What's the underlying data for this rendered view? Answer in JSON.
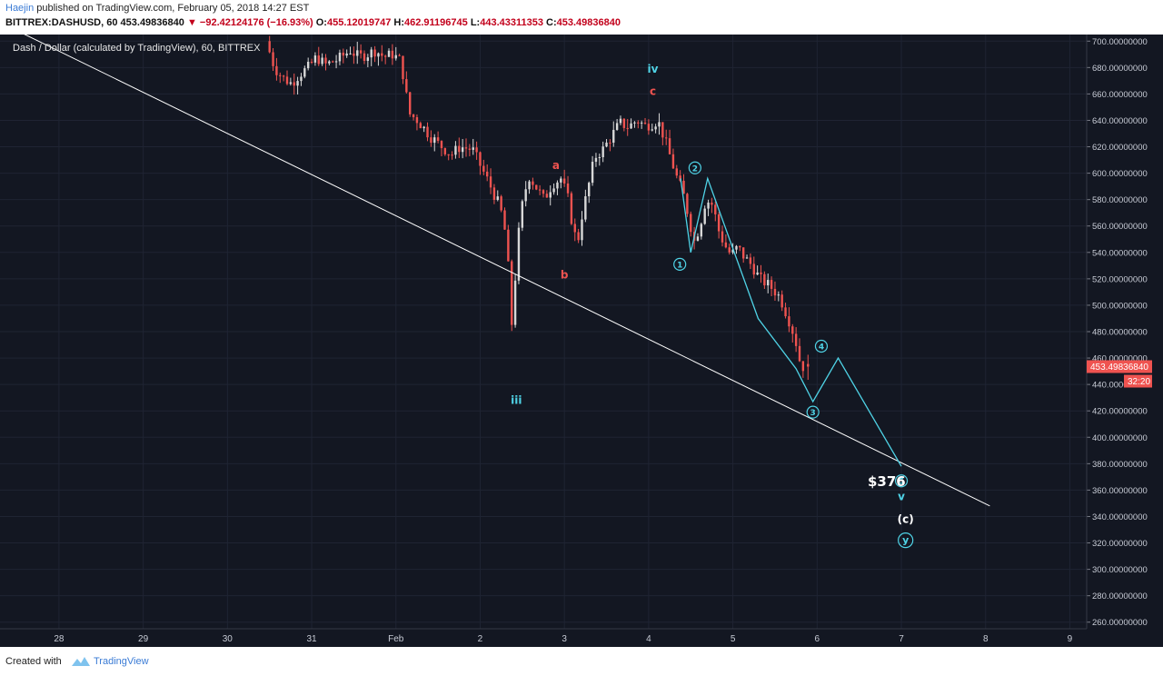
{
  "header": {
    "author": "Haejin",
    "published": "published on TradingView.com, February 05, 2018 14:27 EST",
    "symbol": "BITTREX:DASHUSD, 60",
    "last": "453.49836840",
    "change": "−92.42124176 (−16.93%)",
    "o_label": "O:",
    "o_value": "455.12019747",
    "h_label": "H:",
    "h_value": "462.91196745",
    "l_label": "L:",
    "l_value": "443.43311353",
    "c_label": "C:",
    "c_value": "453.49836840"
  },
  "chart_title": "Dash / Dollar (calculated by TradingView), 60, BITTREX",
  "price_badge": "453.49836840",
  "countdown_badge": "32:20",
  "target_label": "$376",
  "footer": {
    "created_with": "Created with",
    "brand": "TradingView"
  },
  "colors": {
    "background": "#131722",
    "up": "#d8d8d8",
    "down": "#ef5350",
    "wave": "#4fd3e6",
    "trendline": "#ffffff"
  },
  "chart_data": {
    "type": "candlestick",
    "title": "Dash / Dollar (calculated by TradingView), 60, BITTREX",
    "x_ticks": [
      "28",
      "29",
      "30",
      "31",
      "Feb",
      "2",
      "3",
      "4",
      "5",
      "6",
      "7",
      "8",
      "9"
    ],
    "y_ticks": [
      "260.00000000",
      "280.00000000",
      "300.00000000",
      "320.00000000",
      "340.00000000",
      "360.00000000",
      "380.00000000",
      "400.00000000",
      "420.00000000",
      "440.00000000",
      "460.00000000",
      "480.00000000",
      "500.00000000",
      "520.00000000",
      "540.00000000",
      "560.00000000",
      "580.00000000",
      "600.00000000",
      "620.00000000",
      "640.00000000",
      "660.00000000",
      "680.00000000",
      "700.00000000"
    ],
    "ylim": [
      255,
      705
    ],
    "xlim": [
      -0.7,
      12.2
    ],
    "price_path": [
      [
        2.5,
        700
      ],
      [
        2.55,
        690
      ],
      [
        2.6,
        680
      ],
      [
        2.7,
        672
      ],
      [
        2.8,
        668
      ],
      [
        2.9,
        675
      ],
      [
        3.0,
        680
      ],
      [
        3.1,
        688
      ],
      [
        3.2,
        682
      ],
      [
        3.35,
        686
      ],
      [
        3.5,
        693
      ],
      [
        3.6,
        688
      ],
      [
        3.7,
        690
      ],
      [
        3.8,
        693
      ],
      [
        3.9,
        688
      ],
      [
        4.0,
        690
      ],
      [
        4.1,
        685
      ],
      [
        4.2,
        645
      ],
      [
        4.3,
        640
      ],
      [
        4.45,
        628
      ],
      [
        4.55,
        622
      ],
      [
        4.7,
        614
      ],
      [
        4.8,
        620
      ],
      [
        4.95,
        618
      ],
      [
        5.05,
        605
      ],
      [
        5.15,
        592
      ],
      [
        5.25,
        578
      ],
      [
        5.32,
        565
      ],
      [
        5.37,
        535
      ],
      [
        5.4,
        500
      ],
      [
        5.43,
        475
      ],
      [
        5.47,
        540
      ],
      [
        5.55,
        580
      ],
      [
        5.62,
        598
      ],
      [
        5.7,
        590
      ],
      [
        5.8,
        580
      ],
      [
        5.9,
        592
      ],
      [
        6.0,
        596
      ],
      [
        6.08,
        582
      ],
      [
        6.15,
        556
      ],
      [
        6.2,
        548
      ],
      [
        6.25,
        568
      ],
      [
        6.32,
        588
      ],
      [
        6.4,
        612
      ],
      [
        6.5,
        618
      ],
      [
        6.6,
        628
      ],
      [
        6.7,
        638
      ],
      [
        6.8,
        635
      ],
      [
        6.9,
        640
      ],
      [
        7.0,
        636
      ],
      [
        7.1,
        638
      ],
      [
        7.15,
        640
      ],
      [
        7.22,
        628
      ],
      [
        7.3,
        612
      ],
      [
        7.38,
        596
      ],
      [
        7.45,
        585
      ],
      [
        7.52,
        566
      ],
      [
        7.58,
        548
      ],
      [
        7.65,
        560
      ],
      [
        7.72,
        580
      ],
      [
        7.8,
        576
      ],
      [
        7.88,
        555
      ],
      [
        7.95,
        545
      ],
      [
        8.02,
        538
      ],
      [
        8.1,
        544
      ],
      [
        8.18,
        536
      ],
      [
        8.27,
        530
      ],
      [
        8.36,
        520
      ],
      [
        8.45,
        516
      ],
      [
        8.52,
        512
      ],
      [
        8.6,
        506
      ],
      [
        8.7,
        490
      ],
      [
        8.78,
        475
      ],
      [
        8.85,
        453.5
      ]
    ],
    "trendline": [
      [
        -0.5,
        708
      ],
      [
        11.05,
        348
      ]
    ],
    "wave_projection": [
      [
        7.38,
        596
      ],
      [
        7.5,
        540
      ],
      [
        7.7,
        596
      ],
      [
        8.3,
        490
      ],
      [
        8.75,
        452
      ],
      [
        8.95,
        427
      ],
      [
        9.25,
        460
      ],
      [
        10.0,
        378
      ]
    ],
    "wave_labels": [
      {
        "text": "iii",
        "x": 5.43,
        "y": 428,
        "style": "cyan"
      },
      {
        "text": "a",
        "x": 5.9,
        "y": 606,
        "style": "red"
      },
      {
        "text": "b",
        "x": 6.0,
        "y": 523,
        "style": "red"
      },
      {
        "text": "iv",
        "x": 7.05,
        "y": 679,
        "style": "cyan"
      },
      {
        "text": "c",
        "x": 7.05,
        "y": 662,
        "style": "red"
      },
      {
        "text": "1",
        "x": 7.37,
        "y": 531,
        "style": "circle"
      },
      {
        "text": "2",
        "x": 7.55,
        "y": 604,
        "style": "circle"
      },
      {
        "text": "3",
        "x": 8.95,
        "y": 419,
        "style": "circle"
      },
      {
        "text": "4",
        "x": 9.05,
        "y": 469,
        "style": "circle"
      },
      {
        "text": "5",
        "x": 10.0,
        "y": 367,
        "style": "circle"
      },
      {
        "text": "v",
        "x": 10.0,
        "y": 355,
        "style": "cyan"
      },
      {
        "text": "(c)",
        "x": 10.05,
        "y": 338,
        "style": "white"
      },
      {
        "text": "y",
        "x": 10.05,
        "y": 322,
        "style": "circle"
      }
    ],
    "last_price": 453.4983684
  }
}
